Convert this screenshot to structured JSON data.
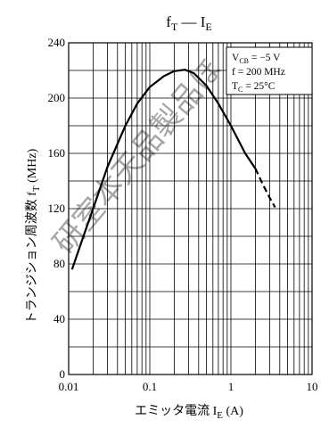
{
  "colors": {
    "watermark": "#f48a9b",
    "curve": "#000000",
    "grid": "#000000"
  },
  "chart_data": {
    "type": "line",
    "title_main": "f",
    "title_sub": "T",
    "title_mid": " — I",
    "title_sub2": "E",
    "xlabel_main": "エミッタ電流 I",
    "xlabel_sub": "E",
    "xlabel_unit": " (A)",
    "ylabel_main": "トランジション周波数 f",
    "ylabel_sub": "T",
    "ylabel_unit": " (MHz)",
    "xscale": "log",
    "xlim": [
      0.01,
      10
    ],
    "ylim": [
      0,
      240
    ],
    "x_ticks": [
      {
        "value": 0.01,
        "label": "0.01"
      },
      {
        "value": 0.1,
        "label": "0.1"
      },
      {
        "value": 1,
        "label": "1"
      },
      {
        "value": 10,
        "label": "10"
      }
    ],
    "y_ticks": [
      {
        "value": 0,
        "label": "0"
      },
      {
        "value": 40,
        "label": "40"
      },
      {
        "value": 80,
        "label": "80"
      },
      {
        "value": 120,
        "label": "120"
      },
      {
        "value": 160,
        "label": "160"
      },
      {
        "value": 200,
        "label": "200"
      },
      {
        "value": 240,
        "label": "240"
      }
    ],
    "grid": true,
    "conditions": [
      {
        "main": "V",
        "sub": "CB",
        "rest": " = −5 V"
      },
      {
        "main": "f = 200 MHz",
        "sub": "",
        "rest": ""
      },
      {
        "main": "T",
        "sub": "C",
        "rest": " = 25°C"
      }
    ],
    "conditions_position": "top-right",
    "series": [
      {
        "solid": [
          [
            0.011,
            76
          ],
          [
            0.015,
            99
          ],
          [
            0.02,
            120
          ],
          [
            0.03,
            150
          ],
          [
            0.05,
            180
          ],
          [
            0.07,
            196
          ],
          [
            0.1,
            208
          ],
          [
            0.15,
            216
          ],
          [
            0.2,
            219.5
          ],
          [
            0.27,
            220.5
          ],
          [
            0.35,
            218
          ],
          [
            0.5,
            209
          ],
          [
            0.7,
            196
          ],
          [
            1.0,
            180
          ],
          [
            1.5,
            160
          ],
          [
            2.0,
            149
          ]
        ],
        "dashed": [
          [
            2.0,
            149
          ],
          [
            2.5,
            137
          ],
          [
            3.0,
            128
          ],
          [
            3.5,
            121
          ]
        ]
      }
    ]
  },
  "watermark": {
    "text": "研室本天品製品ほ"
  }
}
